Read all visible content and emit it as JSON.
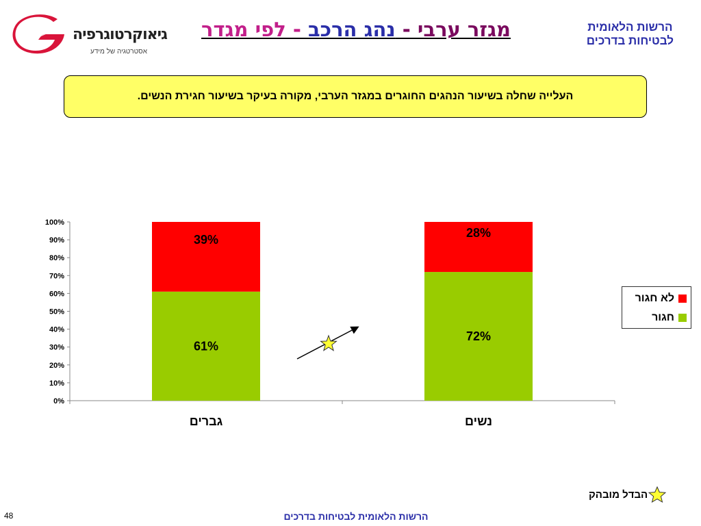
{
  "header": {
    "logo_name": "גיאוקרטוגרפיה",
    "logo_tagline": "אסטרטגיה של מידע",
    "title_part1": "מגזר ערבי - ",
    "title_part2": "נהג הרכב",
    "title_part3": " - לפי מגדר",
    "org_line1": "הרשות הלאומית",
    "org_line2": "לבטיחות בדרכים"
  },
  "note": "העלייה שחלה בשיעור הנהגים החוגרים במגזר הערבי, מקורה בעיקר בשיעור חגירת הנשים.",
  "chart_data": {
    "type": "bar",
    "stacked": true,
    "percent": true,
    "categories": [
      "גברים",
      "נשים"
    ],
    "series": [
      {
        "name": "חגור",
        "values": [
          61,
          72
        ],
        "labels": [
          "61%",
          "72%"
        ],
        "color": "#99cc00"
      },
      {
        "name": "לא חגור",
        "values": [
          39,
          28
        ],
        "labels": [
          "39%",
          "28%"
        ],
        "color": "#ff0000"
      }
    ],
    "ylim": [
      0,
      100
    ],
    "yticks": [
      "0%",
      "10%",
      "20%",
      "30%",
      "40%",
      "50%",
      "60%",
      "70%",
      "80%",
      "90%",
      "100%"
    ],
    "grid": false,
    "legend_position": "right",
    "annotation": {
      "type": "rising-arrow-with-star",
      "between": [
        "גברים",
        "נשים"
      ]
    }
  },
  "legend": {
    "items": [
      {
        "label": "לא חגור",
        "color": "#ff0000"
      },
      {
        "label": "חגור",
        "color": "#99cc00"
      }
    ]
  },
  "key": {
    "label": "הבדל מובהק",
    "icon": "star-icon",
    "color": "#ffff33"
  },
  "footer": "הרשות הלאומית לבטיחות בדרכים",
  "page_number": "48"
}
